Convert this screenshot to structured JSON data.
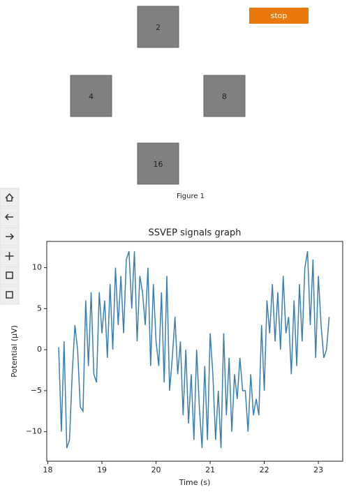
{
  "app": {
    "squares": [
      "2",
      "4",
      "8",
      "16"
    ],
    "stop_button": "stop",
    "figure_label": "Figure 1"
  },
  "chart_data": {
    "type": "line",
    "title": "SSVEP signals graph",
    "xlabel": "Time (s)",
    "ylabel": "Potential (μV)",
    "x": [
      18.2,
      18.25,
      18.3,
      18.35,
      18.4,
      18.45,
      18.5,
      18.55,
      18.6,
      18.65,
      18.7,
      18.75,
      18.8,
      18.85,
      18.9,
      18.95,
      19.0,
      19.05,
      19.1,
      19.15,
      19.2,
      19.25,
      19.3,
      19.35,
      19.4,
      19.45,
      19.5,
      19.55,
      19.6,
      19.65,
      19.7,
      19.75,
      19.8,
      19.85,
      19.9,
      19.95,
      20.0,
      20.05,
      20.1,
      20.15,
      20.2,
      20.25,
      20.3,
      20.35,
      20.4,
      20.45,
      20.5,
      20.55,
      20.6,
      20.65,
      20.7,
      20.75,
      20.8,
      20.85,
      20.9,
      20.95,
      21.0,
      21.05,
      21.1,
      21.15,
      21.2,
      21.25,
      21.3,
      21.35,
      21.4,
      21.45,
      21.5,
      21.55,
      21.6,
      21.65,
      21.7,
      21.75,
      21.8,
      21.85,
      21.9,
      21.95,
      22.0,
      22.05,
      22.1,
      22.15,
      22.2,
      22.25,
      22.3,
      22.35,
      22.4,
      22.45,
      22.5,
      22.55,
      22.6,
      22.65,
      22.7,
      22.75,
      22.8,
      22.85,
      22.9,
      22.95,
      23.0,
      23.05,
      23.1,
      23.15,
      23.2
    ],
    "series": [
      {
        "color": "#3a7fb0",
        "values": [
          0.3,
          -10,
          1,
          -12,
          -11,
          -3,
          3,
          0,
          -7,
          -7.5,
          6,
          -2,
          7,
          -3,
          -4,
          7,
          2,
          6,
          -1,
          8,
          0,
          10,
          3,
          9,
          2,
          11,
          12,
          5,
          12,
          1,
          9,
          7,
          3,
          10,
          -2,
          8,
          1,
          -2,
          7,
          -4,
          9,
          -5,
          -1,
          4,
          -3,
          1,
          -8,
          0,
          -9,
          -3,
          -11,
          0,
          -7,
          -12,
          -2,
          -11,
          2,
          -3,
          -11,
          -5,
          -12,
          2,
          -8,
          -1,
          -10,
          -3,
          -6,
          -1,
          -5,
          -5,
          -10,
          -3,
          -8,
          -6,
          -8,
          3,
          -5,
          6,
          2,
          8,
          1,
          7,
          0,
          9,
          2,
          4,
          -3,
          6,
          -2,
          8,
          1,
          10,
          12,
          3,
          11,
          -1,
          9,
          3,
          -1,
          0,
          4
        ]
      }
    ],
    "xlim": [
      17.98,
      23.45
    ],
    "ylim": [
      -13.6,
      13.2
    ],
    "xticks": [
      18,
      19,
      20,
      21,
      22,
      23
    ],
    "yticks": [
      {
        "value": -10,
        "label": "−10"
      },
      {
        "value": -5,
        "label": "−5"
      },
      0,
      5,
      10
    ]
  }
}
